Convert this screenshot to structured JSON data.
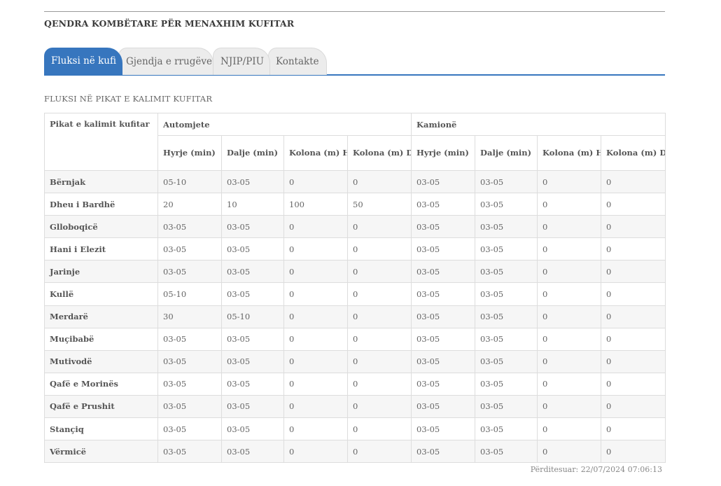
{
  "header": {
    "title": "QENDRA KOMBËTARE PËR MENAXHIM KUFITAR"
  },
  "tabs": [
    {
      "label": "Fluksi në kufi",
      "active": true
    },
    {
      "label": "Gjendja e rrugëve",
      "active": false
    },
    {
      "label": "NJIP/PIU",
      "active": false
    },
    {
      "label": "Kontakte",
      "active": false
    }
  ],
  "section": {
    "title": "FLUKSI NË PIKAT E KALIMIT KUFITAR"
  },
  "table": {
    "row_header": "Pikat e kalimit kufitar",
    "groups": [
      "Automjete",
      "Kamionë"
    ],
    "subheaders": [
      "Hyrje (min)",
      "Dalje (min)",
      "Kolona (m) Hyrje",
      "Kolona (m) Dalje",
      "Hyrje (min)",
      "Dalje (min)",
      "Kolona (m) Hyrje",
      "Kolona (m) Dalje"
    ],
    "rows": [
      {
        "name": "Bërnjak",
        "values": [
          "05-10",
          "03-05",
          "0",
          "0",
          "03-05",
          "03-05",
          "0",
          "0"
        ]
      },
      {
        "name": "Dheu i Bardhë",
        "values": [
          "20",
          "10",
          "100",
          "50",
          "03-05",
          "03-05",
          "0",
          "0"
        ]
      },
      {
        "name": "Glloboqicë",
        "values": [
          "03-05",
          "03-05",
          "0",
          "0",
          "03-05",
          "03-05",
          "0",
          "0"
        ]
      },
      {
        "name": "Hani i Elezit",
        "values": [
          "03-05",
          "03-05",
          "0",
          "0",
          "03-05",
          "03-05",
          "0",
          "0"
        ]
      },
      {
        "name": "Jarinje",
        "values": [
          "03-05",
          "03-05",
          "0",
          "0",
          "03-05",
          "03-05",
          "0",
          "0"
        ]
      },
      {
        "name": "Kullë",
        "values": [
          "05-10",
          "03-05",
          "0",
          "0",
          "03-05",
          "03-05",
          "0",
          "0"
        ]
      },
      {
        "name": "Merdarë",
        "values": [
          "30",
          "05-10",
          "0",
          "0",
          "03-05",
          "03-05",
          "0",
          "0"
        ]
      },
      {
        "name": "Muçibabë",
        "values": [
          "03-05",
          "03-05",
          "0",
          "0",
          "03-05",
          "03-05",
          "0",
          "0"
        ]
      },
      {
        "name": "Mutivodë",
        "values": [
          "03-05",
          "03-05",
          "0",
          "0",
          "03-05",
          "03-05",
          "0",
          "0"
        ]
      },
      {
        "name": "Qafë e Morinës",
        "values": [
          "03-05",
          "03-05",
          "0",
          "0",
          "03-05",
          "03-05",
          "0",
          "0"
        ]
      },
      {
        "name": "Qafë e Prushit",
        "values": [
          "03-05",
          "03-05",
          "0",
          "0",
          "03-05",
          "03-05",
          "0",
          "0"
        ]
      },
      {
        "name": "Stançiq",
        "values": [
          "03-05",
          "03-05",
          "0",
          "0",
          "03-05",
          "03-05",
          "0",
          "0"
        ]
      },
      {
        "name": "Vërmicë",
        "values": [
          "03-05",
          "03-05",
          "0",
          "0",
          "03-05",
          "03-05",
          "0",
          "0"
        ]
      }
    ]
  },
  "footer": {
    "updated_label": "Përditesuar:",
    "updated_value": "22/07/2024 07:06:13"
  }
}
